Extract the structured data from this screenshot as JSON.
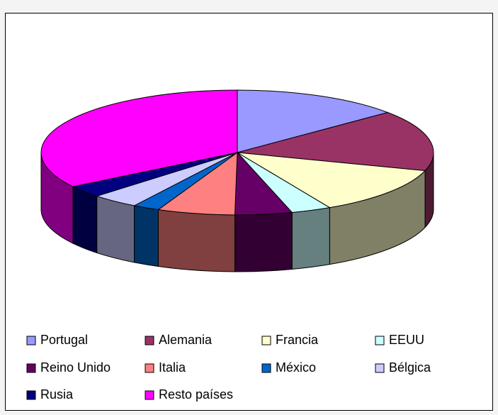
{
  "chart_data": {
    "type": "pie3d",
    "categories": [
      "Portugal",
      "Alemania",
      "Francia",
      "EEUU",
      "Reino Unido",
      "Italia",
      "México",
      "Bélgica",
      "Rusia",
      "Resto países"
    ],
    "values": [
      13.9,
      15.8,
      12.5,
      3.3,
      4.7,
      6.4,
      2.2,
      3.9,
      3.1,
      34.2
    ],
    "colors": [
      "#9999ff",
      "#993366",
      "#ffffcc",
      "#ccffff",
      "#660066",
      "#ff8080",
      "#0066cc",
      "#ccccff",
      "#000080",
      "#ff00ff"
    ],
    "legend": "bottom"
  }
}
